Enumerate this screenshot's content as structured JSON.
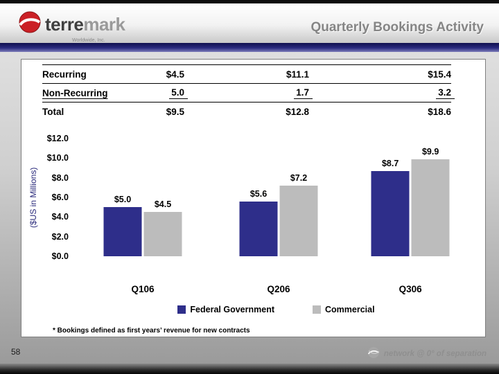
{
  "header": {
    "title": "Quarterly Bookings Activity",
    "logo_text_primary": "terre",
    "logo_text_secondary": "mark",
    "logo_subtitle": "Worldwide, Inc."
  },
  "icons": {
    "logo_icon": "terremark-globe-swoosh",
    "footer_icon": "gray-globe-swoosh"
  },
  "table": {
    "rows": [
      {
        "label": "Recurring",
        "values": [
          "$4.5",
          "$11.1",
          "$15.4"
        ]
      },
      {
        "label": "Non-Recurring",
        "values": [
          "5.0",
          "1.7",
          "3.2"
        ]
      },
      {
        "label": "Total",
        "values": [
          "$9.5",
          "$12.8",
          "$18.6"
        ]
      }
    ]
  },
  "chart_data": {
    "type": "bar",
    "categories": [
      "Q106",
      "Q206",
      "Q306"
    ],
    "series": [
      {
        "name": "Federal Government",
        "color": "#2e2e8a",
        "values": [
          5.0,
          5.6,
          8.7
        ],
        "labels": [
          "$5.0",
          "$5.6",
          "$8.7"
        ]
      },
      {
        "name": "Commercial",
        "color": "#bcbcbc",
        "values": [
          4.5,
          7.2,
          9.9
        ],
        "labels": [
          "$4.5",
          "$7.2",
          "$9.9"
        ]
      }
    ],
    "ylabel": "($US in Millions)",
    "ylim": [
      0,
      12
    ],
    "yticks": [
      {
        "value": 12,
        "label": "$12.0"
      },
      {
        "value": 10,
        "label": "$10.0"
      },
      {
        "value": 8,
        "label": "$8.0"
      },
      {
        "value": 6,
        "label": "$6.0"
      },
      {
        "value": 4,
        "label": "$4.0"
      },
      {
        "value": 2,
        "label": "$2.0"
      },
      {
        "value": 0,
        "label": "$0.0"
      }
    ],
    "grid": false,
    "legend_position": "bottom"
  },
  "footnote": "* Bookings defined as first years’ revenue for new contracts",
  "footer": {
    "page_number": "58",
    "brand_text": "network @ 0° of separation"
  }
}
